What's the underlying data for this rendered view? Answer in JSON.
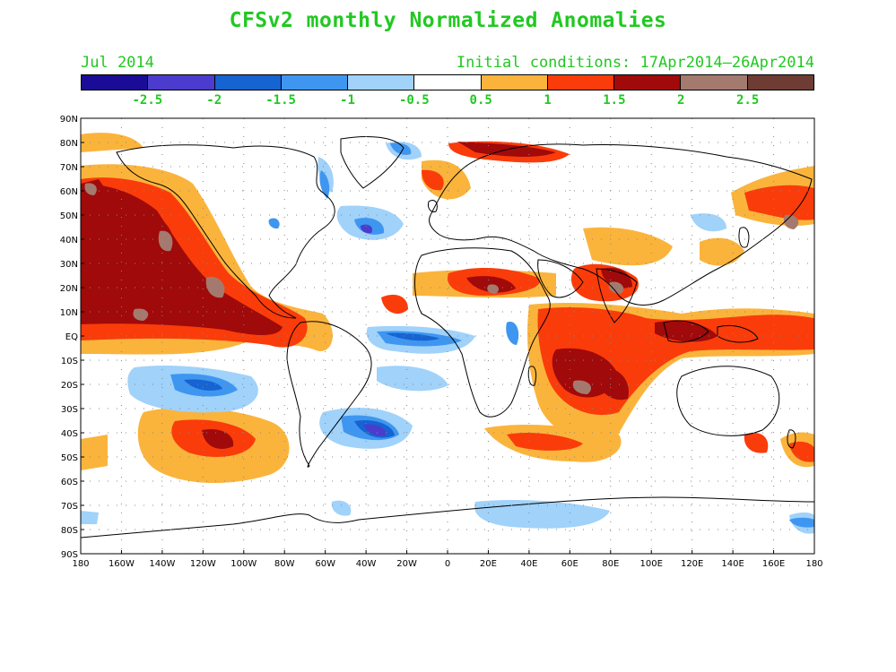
{
  "header": {
    "title": "CFSv2 monthly Normalized Anomalies",
    "month": "Jul 2014",
    "initial_conditions": "Initial conditions: 17Apr2014–26Apr2014"
  },
  "colorbar": {
    "colors": [
      "#1a0c96",
      "#4b3ccd",
      "#1663d2",
      "#3f96f0",
      "#a0d2fa",
      "#ffffff",
      "#fab43c",
      "#fa3c0a",
      "#a00a0a",
      "#a47a6e",
      "#6e3c32"
    ],
    "labels": [
      "-2.5",
      "-2",
      "-1.5",
      "-1",
      "-0.5",
      "0.5",
      "1",
      "1.5",
      "2",
      "2.5"
    ]
  },
  "axes": {
    "lat_labels": [
      "90N",
      "80N",
      "70N",
      "60N",
      "50N",
      "40N",
      "30N",
      "20N",
      "10N",
      "EQ",
      "10S",
      "20S",
      "30S",
      "40S",
      "50S",
      "60S",
      "70S",
      "80S",
      "90S"
    ],
    "lon_labels": [
      "180",
      "160W",
      "140W",
      "120W",
      "100W",
      "80W",
      "60W",
      "40W",
      "20W",
      "0",
      "20E",
      "40E",
      "60E",
      "80E",
      "100E",
      "120E",
      "140E",
      "160E",
      "180"
    ]
  }
}
